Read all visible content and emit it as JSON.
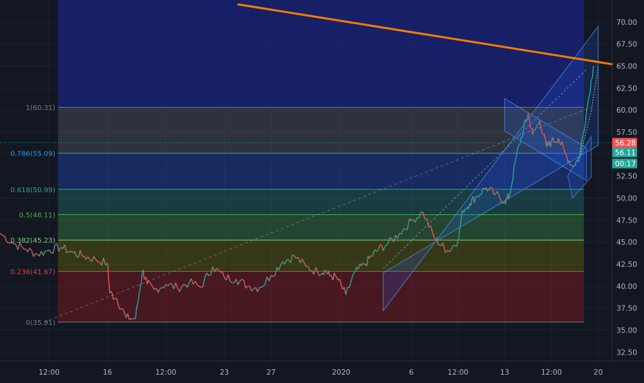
{
  "chart_data": {
    "type": "line",
    "title": "",
    "xlabel": "",
    "ylabel": "",
    "ylim": [
      31.5,
      72.5
    ],
    "y_ticks": [
      32.5,
      35.0,
      37.5,
      40.0,
      42.5,
      45.0,
      47.5,
      50.0,
      52.5,
      55.0,
      57.5,
      60.0,
      62.5,
      65.0,
      67.5,
      70.0
    ],
    "y_tick_labels": [
      "32.50",
      "35.00",
      "37.50",
      "40.00",
      "42.50",
      "45.00",
      "47.50",
      "50.00",
      "52.50",
      "55.00",
      "57.50",
      "60.00",
      "62.50",
      "65.00",
      "67.50",
      "70.00"
    ],
    "x_ticks": [
      {
        "label": "12:00",
        "x": 0.5
      },
      {
        "label": "16",
        "x": 3
      },
      {
        "label": "12:00",
        "x": 5.5
      },
      {
        "label": "23",
        "x": 8
      },
      {
        "label": "27",
        "x": 10
      },
      {
        "label": "2020",
        "x": 13
      },
      {
        "label": "6",
        "x": 16
      },
      {
        "label": "12:00",
        "x": 18
      },
      {
        "label": "13",
        "x": 20
      },
      {
        "label": "12:00",
        "x": 22
      },
      {
        "label": "20",
        "x": 24
      }
    ],
    "xlim": [
      -1.6,
      24.6
    ],
    "price_series": {
      "name": "",
      "x": [
        -1.6,
        -1.0,
        -0.5,
        0.0,
        0.5,
        1.0,
        1.5,
        2.0,
        2.5,
        3.0,
        3.1,
        3.4,
        3.8,
        4.2,
        4.5,
        4.7,
        5.0,
        5.5,
        6.0,
        6.5,
        7.0,
        7.5,
        8.0,
        8.5,
        9.0,
        9.5,
        10.0,
        10.5,
        11.0,
        11.5,
        12.0,
        12.3,
        12.5,
        12.8,
        13.2,
        13.6,
        14.0,
        14.3,
        14.6,
        15.0,
        15.5,
        16.0,
        16.5,
        17.0,
        17.3,
        17.6,
        18.0,
        18.2,
        18.5,
        18.8,
        19.2,
        19.6,
        20.0,
        20.2,
        20.5,
        20.8,
        21.0,
        21.2,
        21.5,
        21.8,
        22.0,
        22.3,
        22.6,
        22.9,
        23.2,
        23.5,
        23.8
      ],
      "y": [
        46.0,
        44.8,
        44.2,
        43.6,
        44.1,
        44.4,
        43.8,
        43.4,
        43.0,
        42.6,
        39.2,
        38.6,
        36.4,
        36.3,
        41.8,
        40.2,
        39.6,
        40.2,
        39.8,
        40.4,
        39.9,
        42.2,
        41.0,
        40.8,
        40.0,
        39.8,
        41.2,
        42.8,
        43.4,
        42.2,
        41.6,
        41.8,
        41.2,
        41.0,
        39.0,
        41.6,
        42.4,
        43.4,
        44.2,
        44.8,
        46.0,
        47.4,
        48.4,
        45.4,
        44.6,
        44.0,
        45.2,
        48.6,
        49.4,
        50.2,
        51.2,
        50.4,
        49.6,
        50.2,
        54.8,
        57.8,
        59.6,
        57.2,
        58.8,
        55.8,
        56.4,
        56.8,
        55.0,
        53.6,
        54.6,
        59.8,
        65.0
      ]
    },
    "fibonacci_levels": [
      {
        "label": "1(60.31)",
        "value": 60.31,
        "color": "#787b86"
      },
      {
        "label": "0.786(55.09)",
        "value": 55.09,
        "color": "#2196f3"
      },
      {
        "label": "0.618(50.99)",
        "value": 50.99,
        "color": "#26a69a"
      },
      {
        "label": "0.5(48.11)",
        "value": 48.11,
        "color": "#4caf50"
      },
      {
        "label": "0.382(45.23)",
        "value": 45.23,
        "color": "#81c784"
      },
      {
        "label": "0.236(41.67)",
        "value": 41.67,
        "color": "#f23645"
      },
      {
        "label": "0(35.91)",
        "value": 35.91,
        "color": "#787b86"
      }
    ],
    "trend_line": {
      "x": [
        8.6,
        24.6
      ],
      "y": [
        72.0,
        65.2
      ],
      "color": "#f57c00"
    },
    "fib_trend": {
      "x": [
        0.3,
        23.7
      ],
      "y": [
        35.91,
        60.31
      ]
    },
    "price_badges": [
      {
        "label": "56.28",
        "value": 56.28,
        "color": "#ef5350"
      },
      {
        "label": "56.11",
        "value": 56.11,
        "color": "#26a69a"
      },
      {
        "label": "00:17",
        "value": 54.4,
        "color": "#26a69a"
      }
    ],
    "grid": true
  }
}
